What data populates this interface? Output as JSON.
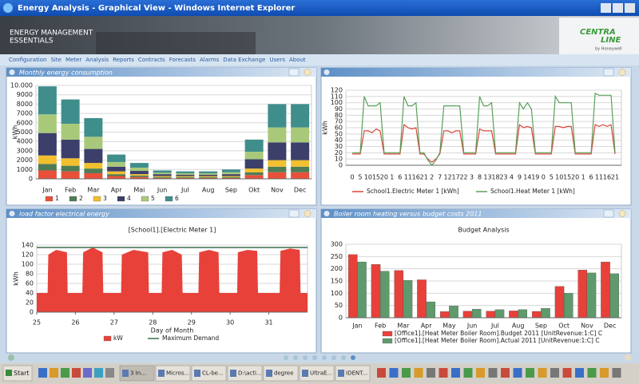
{
  "window": {
    "title": "Energy Analysis - Graphical View - Windows Internet Explorer"
  },
  "header": {
    "product": [
      "ENERGY MANAGEMENT",
      "ESSENTIALS"
    ],
    "logo": [
      "CENTRA",
      "LINE"
    ],
    "logo_sub": "by Honeywell"
  },
  "menu": [
    "Configuration",
    "Site",
    "Meter",
    "Analysis",
    "Reports",
    "Contracts",
    "Forecasts",
    "Alarms",
    "Data Exchange",
    "Users",
    "About"
  ],
  "panels": [
    {
      "title": "Monthly energy consumption",
      "chart": {
        "type": "stacked_bar",
        "y_label": "kWh",
        "categories": [
          "Jan",
          "Feb",
          "Mar",
          "Apr",
          "Mai",
          "Jun",
          "Jul",
          "Aug",
          "Sep",
          "Okt",
          "Nov",
          "Dec"
        ],
        "ylim": [
          0,
          10000
        ],
        "yticks": [
          0,
          1000,
          2000,
          3000,
          4000,
          5000,
          6000,
          7000,
          8000,
          9000,
          {
            "value": 10000,
            "label": "10.000"
          }
        ],
        "grid": true,
        "series": [
          {
            "name": "1",
            "color": "#e8503a",
            "values": [
              900,
              800,
              600,
              300,
              200,
              100,
              100,
              100,
              100,
              400,
              700,
              700
            ]
          },
          {
            "name": "2",
            "color": "#4e7d55",
            "values": [
              700,
              600,
              500,
              200,
              150,
              100,
              100,
              100,
              100,
              300,
              600,
              600
            ]
          },
          {
            "name": "3",
            "color": "#f2c02e",
            "values": [
              900,
              800,
              600,
              300,
              150,
              100,
              100,
              100,
              100,
              400,
              700,
              700
            ]
          },
          {
            "name": "4",
            "color": "#3c3f6a",
            "values": [
              2400,
              2000,
              1500,
              500,
              350,
              200,
              150,
              150,
              200,
              1000,
              1900,
              1900
            ]
          },
          {
            "name": "5",
            "color": "#a9c97a",
            "values": [
              2000,
              1700,
              1300,
              500,
              350,
              150,
              150,
              150,
              200,
              800,
              1600,
              1600
            ]
          },
          {
            "name": "6",
            "color": "#3f8e8c",
            "values": [
              3000,
              2600,
              2000,
              800,
              500,
              250,
              200,
              200,
              300,
              1300,
              2500,
              2500
            ]
          }
        ]
      }
    },
    {
      "chart": {
        "type": "line",
        "y_label": "kWh",
        "categories": [
          "0",
          null,
          "5",
          null,
          "10",
          null,
          "15",
          null,
          "20",
          null,
          "1",
          null,
          "6",
          null,
          "11",
          null,
          "16",
          null,
          "21",
          null,
          "2",
          null,
          "7",
          null,
          "12",
          null,
          "17",
          null,
          "22",
          null,
          "3",
          null,
          "8",
          null,
          "13",
          null,
          "18",
          null,
          "23",
          null,
          "4",
          null,
          "9",
          null,
          "14",
          null,
          "19",
          null,
          "0",
          null,
          "5",
          null,
          "10",
          null,
          "15",
          null,
          "20",
          null,
          "1",
          null,
          "6",
          null,
          "11",
          null,
          "16",
          null,
          "21"
        ],
        "ylim": [
          0,
          120
        ],
        "yticks": [
          0,
          10,
          20,
          30,
          40,
          50,
          60,
          70,
          80,
          90,
          100,
          110,
          120
        ],
        "grid": true,
        "series": [
          {
            "name": "School1.Electric Meter 1 [kWh]",
            "color": "#d9463a",
            "values": [
              18,
              18,
              18,
              55,
              55,
              52,
              58,
              55,
              18,
              18,
              18,
              18,
              18,
              65,
              60,
              58,
              60,
              18,
              18,
              10,
              5,
              10,
              18,
              55,
              55,
              52,
              55,
              55,
              18,
              18,
              18,
              18,
              58,
              55,
              55,
              55,
              18,
              18,
              18,
              18,
              18,
              18,
              65,
              60,
              62,
              60,
              18,
              18,
              18,
              18,
              18,
              62,
              62,
              60,
              62,
              62,
              18,
              18,
              18,
              18,
              18,
              65,
              62,
              65,
              62,
              65,
              18
            ]
          },
          {
            "name": "School1.Heat Meter 1 [kWh]",
            "color": "#5aa05a",
            "values": [
              20,
              20,
              20,
              110,
              95,
              95,
              95,
              100,
              20,
              20,
              20,
              20,
              20,
              110,
              95,
              95,
              100,
              20,
              20,
              8,
              0,
              8,
              20,
              95,
              95,
              95,
              95,
              95,
              20,
              20,
              20,
              20,
              110,
              95,
              95,
              100,
              20,
              20,
              20,
              20,
              20,
              20,
              100,
              90,
              100,
              90,
              20,
              20,
              20,
              20,
              20,
              110,
              100,
              100,
              100,
              100,
              20,
              20,
              20,
              20,
              20,
              115,
              112,
              112,
              112,
              112,
              20
            ]
          }
        ]
      }
    },
    {
      "title": "load factor electrical energy",
      "chart": {
        "type": "area",
        "title": "[School1].[Electric Meter 1]",
        "y_label": "kWh",
        "x_label": "Day of Month",
        "xlim": [
          25,
          32
        ],
        "xticks": [
          25,
          26,
          27,
          28,
          29,
          30,
          31
        ],
        "ylim": [
          0,
          140
        ],
        "yticks": [
          0,
          20,
          40,
          60,
          80,
          100,
          120,
          140
        ],
        "grid": true,
        "series": [
          {
            "name": "kW",
            "color": "#e8413a",
            "style": "area",
            "x": [
              25,
              25.28,
              25.3,
              25.5,
              25.78,
              25.8,
              26.18,
              26.2,
              26.45,
              26.7,
              26.72,
              27.18,
              27.2,
              27.5,
              27.88,
              27.9,
              28.23,
              28.25,
              28.5,
              28.75,
              28.77,
              29.18,
              29.2,
              29.45,
              29.7,
              29.72,
              30.18,
              30.2,
              30.45,
              30.7,
              30.72,
              31.28,
              31.3,
              31.55,
              31.8,
              31.82,
              32
            ],
            "values": [
              40,
              40,
              120,
              130,
              125,
              40,
              40,
              125,
              135,
              125,
              40,
              40,
              120,
              130,
              125,
              40,
              40,
              125,
              130,
              120,
              40,
              40,
              125,
              130,
              125,
              40,
              40,
              125,
              130,
              128,
              40,
              40,
              128,
              133,
              130,
              40,
              40
            ]
          },
          {
            "name": "Maximum Demand",
            "color": "#3d6e4a",
            "style": "line",
            "x": [
              25,
              32
            ],
            "values": [
              135,
              135
            ]
          }
        ]
      }
    },
    {
      "title": "Boiler room heating versus budget costs 2011",
      "chart": {
        "type": "grouped_bar",
        "title": "Budget Analysis",
        "categories": [
          "Jan",
          "Feb",
          "Mar",
          "Apr",
          "May",
          "Jun",
          "Jul",
          "Aug",
          "Sep",
          "Oct",
          "Nov",
          "Dec"
        ],
        "ylim": [
          0,
          300
        ],
        "yticks": [
          0,
          50,
          100,
          150,
          200,
          250,
          300
        ],
        "grid": true,
        "series": [
          {
            "name": "[Office1].[Heat Meter Boiler Room].Budget 2011 [UnitRevenue:1:C] C",
            "color": "#e8413a",
            "values": [
              258,
              218,
              193,
              155,
              25,
              27,
              27,
              28,
              26,
              128,
              195,
              228
            ]
          },
          {
            "name": "[Office1].[Heat Meter Boiler Room].Actual 2011 [UnitRevenue:1:C] C",
            "color": "#5e9a6c",
            "values": [
              228,
              190,
              153,
              65,
              48,
              35,
              33,
              33,
              38,
              100,
              183,
              180
            ]
          }
        ]
      }
    }
  ],
  "taskbar": {
    "start": "Start",
    "buttons": [
      "3 In...",
      "Micros...",
      "CL-be...",
      "D:\\acti...",
      "degree",
      "UltraE...",
      "IDENT..."
    ]
  }
}
